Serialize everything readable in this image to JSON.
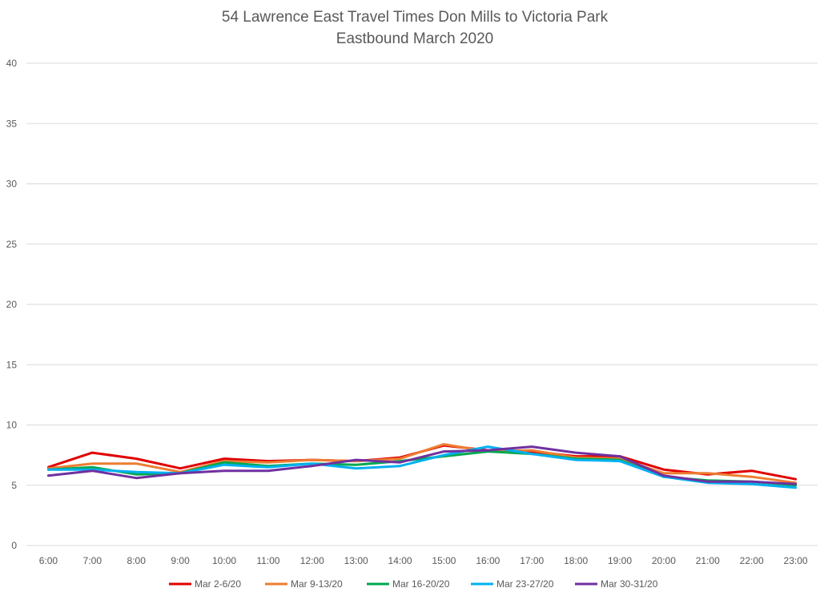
{
  "chart_data": {
    "type": "line",
    "title": "54 Lawrence East Travel Times Don Mills to Victoria Park",
    "subtitle": "Eastbound  March 2020",
    "xlabel": "",
    "ylabel": "",
    "ylim": [
      0,
      40
    ],
    "yticks": [
      "0",
      "5",
      "10",
      "15",
      "20",
      "25",
      "30",
      "35",
      "40"
    ],
    "grid": true,
    "legend_position": "bottom",
    "categories": [
      "6:00",
      "7:00",
      "8:00",
      "9:00",
      "10:00",
      "11:00",
      "12:00",
      "13:00",
      "14:00",
      "15:00",
      "16:00",
      "17:00",
      "18:00",
      "19:00",
      "20:00",
      "21:00",
      "22:00",
      "23:00"
    ],
    "series": [
      {
        "name": "Mar 2-6/20",
        "color": "#e00000",
        "values": [
          6.5,
          7.7,
          7.2,
          6.4,
          7.2,
          7.0,
          7.1,
          7.0,
          7.3,
          8.3,
          7.9,
          7.8,
          7.4,
          7.4,
          6.3,
          5.9,
          6.2,
          5.5
        ]
      },
      {
        "name": "Mar 9-13/20",
        "color": "#ed7d31",
        "values": [
          6.4,
          6.8,
          6.8,
          6.1,
          7.0,
          6.9,
          7.1,
          7.0,
          7.2,
          8.4,
          7.8,
          7.9,
          7.3,
          7.2,
          6.0,
          6.0,
          5.7,
          5.2
        ]
      },
      {
        "name": "Mar 16-20/20",
        "color": "#00a84f",
        "values": [
          6.3,
          6.5,
          5.9,
          6.0,
          6.9,
          6.6,
          6.8,
          6.7,
          7.0,
          7.4,
          7.8,
          7.6,
          7.2,
          7.1,
          5.7,
          5.4,
          5.3,
          5.0
        ]
      },
      {
        "name": "Mar 23-27/20",
        "color": "#00b0f0",
        "values": [
          6.3,
          6.3,
          6.1,
          6.0,
          6.7,
          6.5,
          6.8,
          6.4,
          6.6,
          7.5,
          8.2,
          7.6,
          7.1,
          7.0,
          5.7,
          5.2,
          5.1,
          4.8
        ]
      },
      {
        "name": "Mar 30-31/20",
        "color": "#7030a0",
        "values": [
          5.8,
          6.2,
          5.6,
          6.0,
          6.2,
          6.2,
          6.6,
          7.1,
          6.9,
          7.8,
          7.9,
          8.2,
          7.7,
          7.4,
          5.8,
          5.3,
          5.3,
          5.1
        ]
      }
    ]
  }
}
